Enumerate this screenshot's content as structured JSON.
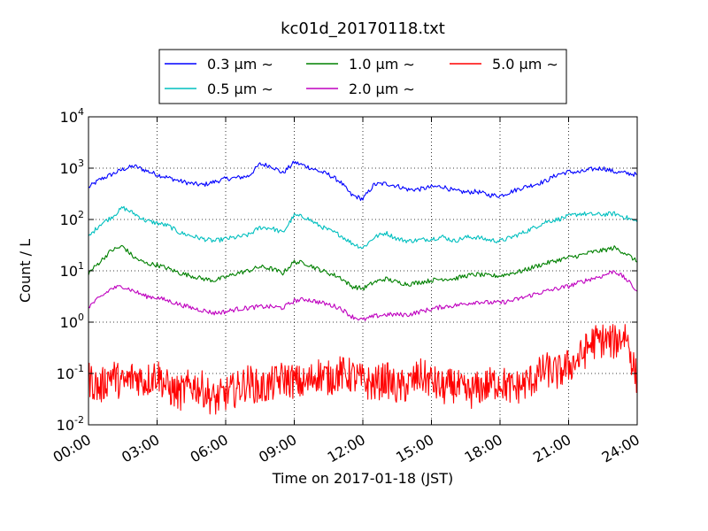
{
  "chart_data": {
    "type": "line",
    "title": "kc01d_20170118.txt",
    "xlabel": "Time on 2017-01-18 (JST)",
    "ylabel": "Count / L",
    "yscale": "log",
    "xlim": [
      0,
      24
    ],
    "ylim": [
      0.01,
      10000
    ],
    "x_ticks": [
      "00:00",
      "03:00",
      "06:00",
      "09:00",
      "12:00",
      "15:00",
      "18:00",
      "21:00",
      "24:00"
    ],
    "y_ticks": [
      {
        "base": "10",
        "exp": "-2"
      },
      {
        "base": "10",
        "exp": "-1"
      },
      {
        "base": "10",
        "exp": "0"
      },
      {
        "base": "10",
        "exp": "1"
      },
      {
        "base": "10",
        "exp": "2"
      },
      {
        "base": "10",
        "exp": "3"
      },
      {
        "base": "10",
        "exp": "4"
      }
    ],
    "grid": true,
    "legend_position": "top-center",
    "series": [
      {
        "name": "0.3 μm ∼",
        "color": "#0000ff",
        "x": [
          0,
          0.5,
          1,
          1.5,
          2,
          2.5,
          3,
          3.5,
          4,
          4.5,
          5,
          5.5,
          6,
          6.5,
          7,
          7.5,
          8,
          8.5,
          9,
          9.5,
          10,
          10.5,
          11,
          11.5,
          12,
          12.5,
          13,
          13.5,
          14,
          14.5,
          15,
          15.5,
          16,
          16.5,
          17,
          17.5,
          18,
          18.5,
          19,
          19.5,
          20,
          20.5,
          21,
          21.5,
          22,
          22.5,
          23,
          23.5,
          24
        ],
        "y": [
          420,
          600,
          750,
          950,
          1100,
          900,
          750,
          650,
          560,
          500,
          470,
          540,
          620,
          650,
          700,
          1200,
          1100,
          800,
          1300,
          1100,
          900,
          750,
          550,
          300,
          250,
          480,
          500,
          450,
          380,
          390,
          430,
          440,
          360,
          340,
          350,
          300,
          290,
          350,
          420,
          480,
          560,
          750,
          850,
          830,
          950,
          1000,
          850,
          800,
          750
        ]
      },
      {
        "name": "0.5 μm ∼",
        "color": "#00bfbf",
        "x": [
          0,
          0.5,
          1,
          1.5,
          2,
          2.5,
          3,
          3.5,
          4,
          4.5,
          5,
          5.5,
          6,
          6.5,
          7,
          7.5,
          8,
          8.5,
          9,
          9.5,
          10,
          10.5,
          11,
          11.5,
          12,
          12.5,
          13,
          13.5,
          14,
          14.5,
          15,
          15.5,
          16,
          16.5,
          17,
          17.5,
          18,
          18.5,
          19,
          19.5,
          20,
          20.5,
          21,
          21.5,
          22,
          22.5,
          23,
          23.5,
          24
        ],
        "y": [
          45,
          80,
          110,
          170,
          130,
          95,
          85,
          75,
          55,
          48,
          42,
          38,
          42,
          45,
          50,
          70,
          68,
          55,
          120,
          110,
          80,
          62,
          50,
          35,
          28,
          45,
          55,
          42,
          38,
          40,
          42,
          46,
          38,
          45,
          45,
          40,
          38,
          45,
          55,
          70,
          90,
          100,
          115,
          130,
          125,
          125,
          130,
          110,
          90
        ]
      },
      {
        "name": "1.0 μm ∼",
        "color": "#008000",
        "x": [
          0,
          0.5,
          1,
          1.5,
          2,
          2.5,
          3,
          3.5,
          4,
          4.5,
          5,
          5.5,
          6,
          6.5,
          7,
          7.5,
          8,
          8.5,
          9,
          9.5,
          10,
          10.5,
          11,
          11.5,
          12,
          12.5,
          13,
          13.5,
          14,
          14.5,
          15,
          15.5,
          16,
          16.5,
          17,
          17.5,
          18,
          18.5,
          19,
          19.5,
          20,
          20.5,
          21,
          21.5,
          22,
          22.5,
          23,
          23.5,
          24
        ],
        "y": [
          9,
          15,
          25,
          30,
          18,
          14,
          13,
          11,
          9,
          8,
          7,
          6.5,
          7.5,
          9,
          10,
          12,
          11,
          9,
          15,
          14,
          11,
          9,
          7.5,
          5,
          4.5,
          6,
          7,
          6,
          5.5,
          6,
          6.5,
          7,
          7,
          8,
          8.5,
          8,
          8,
          9,
          10,
          12,
          14,
          16,
          18,
          20,
          23,
          25,
          28,
          22,
          15
        ]
      },
      {
        "name": "2.0 μm ∼",
        "color": "#bf00bf",
        "x": [
          0,
          0.5,
          1,
          1.5,
          2,
          2.5,
          3,
          3.5,
          4,
          4.5,
          5,
          5.5,
          6,
          6.5,
          7,
          7.5,
          8,
          8.5,
          9,
          9.5,
          10,
          10.5,
          11,
          11.5,
          12,
          12.5,
          13,
          13.5,
          14,
          14.5,
          15,
          15.5,
          16,
          16.5,
          17,
          17.5,
          18,
          18.5,
          19,
          19.5,
          20,
          20.5,
          21,
          21.5,
          22,
          22.5,
          23,
          23.5,
          24
        ],
        "y": [
          2,
          3,
          4.5,
          5,
          4,
          3.2,
          3,
          2.6,
          2.2,
          1.9,
          1.7,
          1.5,
          1.6,
          1.8,
          1.9,
          2,
          2,
          1.9,
          2.6,
          2.8,
          2.5,
          2.2,
          1.9,
          1.3,
          1.1,
          1.3,
          1.4,
          1.4,
          1.4,
          1.6,
          1.8,
          2,
          2.1,
          2.3,
          2.5,
          2.4,
          2.4,
          2.6,
          3,
          3.5,
          4,
          4.5,
          5,
          6,
          7,
          8,
          10,
          7,
          4
        ]
      },
      {
        "name": "5.0 μm ∼",
        "color": "#ff0000",
        "x": [
          0,
          0.5,
          1,
          1.5,
          2,
          2.5,
          3,
          3.5,
          4,
          4.5,
          5,
          5.5,
          6,
          6.5,
          7,
          7.5,
          8,
          8.5,
          9,
          9.5,
          10,
          10.5,
          11,
          11.5,
          12,
          12.5,
          13,
          13.5,
          14,
          14.5,
          15,
          15.5,
          16,
          16.5,
          17,
          17.5,
          18,
          18.5,
          19,
          19.5,
          20,
          20.5,
          21,
          21.5,
          22,
          22.5,
          23,
          23.5,
          24
        ],
        "y": [
          0.08,
          0.05,
          0.1,
          0.06,
          0.09,
          0.07,
          0.1,
          0.05,
          0.04,
          0.06,
          0.05,
          0.03,
          0.04,
          0.05,
          0.07,
          0.05,
          0.06,
          0.08,
          0.07,
          0.06,
          0.1,
          0.08,
          0.1,
          0.09,
          0.07,
          0.06,
          0.08,
          0.05,
          0.06,
          0.09,
          0.07,
          0.05,
          0.06,
          0.04,
          0.05,
          0.06,
          0.07,
          0.05,
          0.06,
          0.08,
          0.12,
          0.1,
          0.14,
          0.2,
          0.4,
          0.45,
          0.4,
          0.6,
          0.07
        ]
      }
    ]
  }
}
